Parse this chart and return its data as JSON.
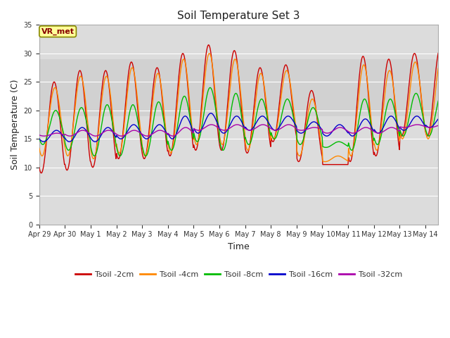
{
  "title": "Soil Temperature Set 3",
  "xlabel": "Time",
  "ylabel": "Soil Temperature (C)",
  "ylim": [
    0,
    35
  ],
  "yticks": [
    0,
    5,
    10,
    15,
    20,
    25,
    30,
    35
  ],
  "line_colors": {
    "Tsoil -2cm": "#cc0000",
    "Tsoil -4cm": "#ff8800",
    "Tsoil -8cm": "#00bb00",
    "Tsoil -16cm": "#0000cc",
    "Tsoil -32cm": "#aa00aa"
  },
  "legend_label": "VR_met",
  "x_tick_labels": [
    "Apr 29",
    "Apr 30",
    "May 1",
    "May 2",
    "May 3",
    "May 4",
    "May 5",
    "May 6",
    "May 7",
    "May 8",
    "May 9",
    "May 10",
    "May 11",
    "May 12",
    "May 13",
    "May 14"
  ],
  "n_days": 15.5,
  "points_per_day": 48,
  "figsize": [
    6.4,
    4.8
  ],
  "dpi": 100
}
